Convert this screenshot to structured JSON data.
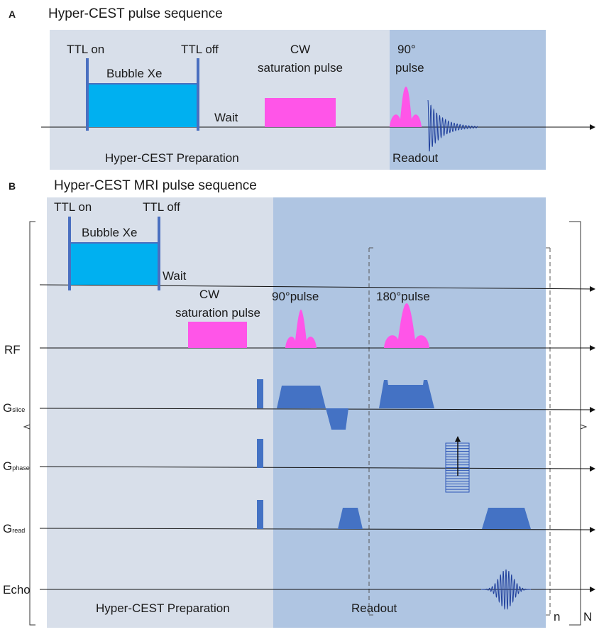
{
  "panel_a": {
    "letter": "A",
    "title": "Hyper-CEST pulse sequence",
    "ttl_on": "TTL on",
    "ttl_off": "TTL off",
    "bubble": "Bubble Xe",
    "wait": "Wait",
    "cw_line1": "CW",
    "cw_line2": "saturation pulse",
    "pulse_line1": "90°",
    "pulse_line2": "pulse",
    "prep_label": "Hyper-CEST Preparation",
    "readout_label": "Readout"
  },
  "panel_b": {
    "letter": "B",
    "title": "Hyper-CEST MRI pulse sequence",
    "ttl_on": "TTL on",
    "ttl_off": "TTL off",
    "bubble": "Bubble Xe",
    "wait": "Wait",
    "cw_line1": "CW",
    "cw_line2": "saturation pulse",
    "pulse90": "90°pulse",
    "pulse180": "180°pulse",
    "rf": "RF",
    "g": "G",
    "slice_sub": "slice",
    "phase_sub": "phase",
    "read_sub": "read",
    "echo": "Echo",
    "prep_label": "Hyper-CEST Preparation",
    "readout_label": "Readout",
    "n": "n",
    "N": "N"
  },
  "colors": {
    "prep_bg": "#d8dfea",
    "readout_bg": "#afc5e2",
    "bubble": "#00b0f0",
    "ttl_bar": "#4a6fc0",
    "pulse": "#ff55e8",
    "gradient": "#4472c4",
    "echo_wave": "#1f3f9c"
  }
}
